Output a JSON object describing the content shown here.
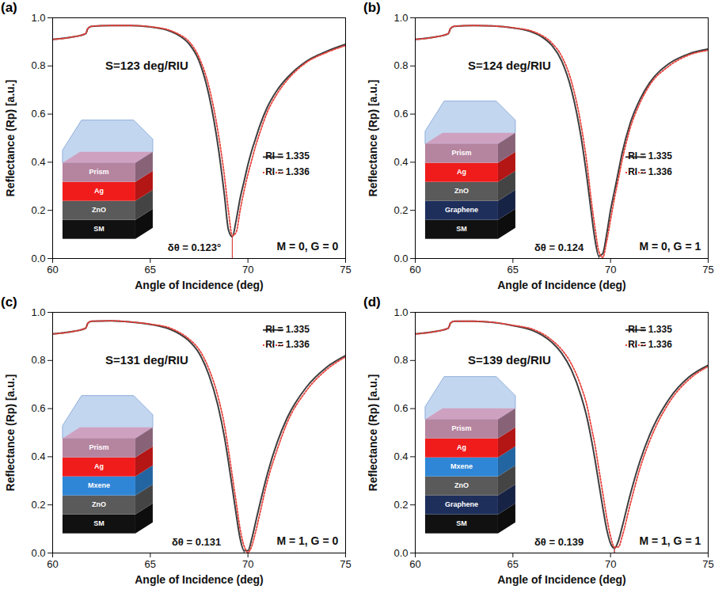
{
  "chart_data": [
    {
      "type": "line",
      "title": "(a)",
      "x_label": "Angle of Incidence (deg)",
      "y_label": "Reflectance (Rp) [a.u.]",
      "xlim": [
        60,
        75
      ],
      "xticks": [
        60,
        65,
        70,
        75
      ],
      "ylim": [
        0,
        1
      ],
      "yticks": [
        {
          "value": 0,
          "label": "0.0"
        },
        {
          "value": 0.2,
          "label": "0.2"
        },
        {
          "value": 0.4,
          "label": "0.4"
        },
        {
          "value": 0.6,
          "label": "0.6"
        },
        {
          "value": 0.8,
          "label": "0.8"
        },
        {
          "value": 1,
          "label": "1.0"
        }
      ],
      "legend": "right",
      "annotations": [
        "S=123 deg/RIU",
        "δθ = 0.123°",
        "M = 0, G = 0"
      ],
      "layers": [
        {
          "label": "Prism",
          "color": "#b5849f"
        },
        {
          "label": "Ag",
          "color": "#f01c1c"
        },
        {
          "label": "ZnO",
          "color": "#5a5a5a"
        },
        {
          "label": "SM",
          "color": "#111111"
        }
      ],
      "x": [
        60,
        61,
        61.7,
        61.8,
        62,
        63,
        64,
        65,
        66,
        66.5,
        67,
        67.5,
        68,
        68.5,
        68.8,
        69,
        69.2,
        69.4,
        69.6,
        69.8,
        70,
        70.2,
        70.4,
        70.6,
        71,
        71.5,
        72,
        73,
        74,
        75
      ],
      "series": [
        {
          "name": "RI = 1.335",
          "color": "#3d3d3d",
          "line_style": "solid",
          "values": [
            0.91,
            0.92,
            0.935,
            0.955,
            0.965,
            0.968,
            0.968,
            0.962,
            0.945,
            0.925,
            0.89,
            0.82,
            0.68,
            0.45,
            0.26,
            0.12,
            0.09,
            0.16,
            0.25,
            0.32,
            0.39,
            0.45,
            0.5,
            0.55,
            0.63,
            0.7,
            0.75,
            0.82,
            0.86,
            0.89
          ]
        },
        {
          "name": "RI = 1.336",
          "color": "#e8423c",
          "line_style": "dotted",
          "values": [
            0.91,
            0.92,
            0.935,
            0.955,
            0.965,
            0.968,
            0.968,
            0.963,
            0.948,
            0.93,
            0.9,
            0.835,
            0.715,
            0.51,
            0.34,
            0.2,
            0.095,
            0.11,
            0.2,
            0.28,
            0.35,
            0.41,
            0.47,
            0.52,
            0.61,
            0.685,
            0.74,
            0.815,
            0.855,
            0.885
          ]
        }
      ]
    },
    {
      "type": "line",
      "title": "(b)",
      "x_label": "Angle of Incidence (deg)",
      "y_label": "Reflectance (Rp) [a.u.]",
      "xlim": [
        60,
        75
      ],
      "xticks": [
        60,
        65,
        70,
        75
      ],
      "ylim": [
        0,
        1
      ],
      "yticks": [
        {
          "value": 0,
          "label": "0.0"
        },
        {
          "value": 0.2,
          "label": "0.2"
        },
        {
          "value": 0.4,
          "label": "0.4"
        },
        {
          "value": 0.6,
          "label": "0.6"
        },
        {
          "value": 0.8,
          "label": "0.8"
        },
        {
          "value": 1,
          "label": "1.0"
        }
      ],
      "legend": "right",
      "annotations": [
        "S=124 deg/RIU",
        "δθ = 0.124",
        "M = 0, G = 1"
      ],
      "layers": [
        {
          "label": "Prism",
          "color": "#b5849f"
        },
        {
          "label": "Ag",
          "color": "#f01c1c"
        },
        {
          "label": "ZnO",
          "color": "#5a5a5a"
        },
        {
          "label": "Graphene",
          "color": "#1e2f5c"
        },
        {
          "label": "SM",
          "color": "#111111"
        }
      ],
      "x": [
        60,
        61,
        61.7,
        61.8,
        62,
        63,
        64,
        65,
        66,
        66.5,
        67,
        67.5,
        68,
        68.5,
        68.8,
        69,
        69.2,
        69.4,
        69.6,
        69.8,
        70,
        70.2,
        70.4,
        70.6,
        71,
        71.5,
        72,
        73,
        74,
        75
      ],
      "series": [
        {
          "name": "RI = 1.335",
          "color": "#3d3d3d",
          "line_style": "solid",
          "values": [
            0.91,
            0.92,
            0.935,
            0.955,
            0.965,
            0.968,
            0.966,
            0.958,
            0.94,
            0.92,
            0.885,
            0.82,
            0.7,
            0.5,
            0.33,
            0.2,
            0.08,
            0.01,
            0.02,
            0.1,
            0.2,
            0.28,
            0.36,
            0.44,
            0.56,
            0.66,
            0.73,
            0.81,
            0.85,
            0.87
          ]
        },
        {
          "name": "RI = 1.336",
          "color": "#e8423c",
          "line_style": "dotted",
          "values": [
            0.91,
            0.92,
            0.935,
            0.955,
            0.965,
            0.968,
            0.966,
            0.959,
            0.944,
            0.926,
            0.895,
            0.84,
            0.735,
            0.55,
            0.39,
            0.25,
            0.13,
            0.03,
            0.005,
            0.07,
            0.16,
            0.25,
            0.33,
            0.41,
            0.54,
            0.645,
            0.72,
            0.8,
            0.845,
            0.865
          ]
        }
      ]
    },
    {
      "type": "line",
      "title": "(c)",
      "x_label": "Angle of Incidence (deg)",
      "y_label": "Reflectance (Rp) [a.u.]",
      "xlim": [
        60,
        75
      ],
      "xticks": [
        60,
        65,
        70,
        75
      ],
      "ylim": [
        0,
        1
      ],
      "yticks": [
        {
          "value": 0,
          "label": "0.0"
        },
        {
          "value": 0.2,
          "label": "0.2"
        },
        {
          "value": 0.4,
          "label": "0.4"
        },
        {
          "value": 0.6,
          "label": "0.6"
        },
        {
          "value": 0.8,
          "label": "0.8"
        },
        {
          "value": 1,
          "label": "1.0"
        }
      ],
      "legend": "top-right",
      "annotations": [
        "S=131 deg/RIU",
        "δθ = 0.131",
        "M = 1, G = 0"
      ],
      "layers": [
        {
          "label": "Prism",
          "color": "#b5849f"
        },
        {
          "label": "Ag",
          "color": "#f01c1c"
        },
        {
          "label": "Mxene",
          "color": "#2f86d6"
        },
        {
          "label": "ZnO",
          "color": "#5a5a5a"
        },
        {
          "label": "SM",
          "color": "#111111"
        }
      ],
      "x": [
        60,
        61,
        61.7,
        61.8,
        62,
        63,
        64,
        65,
        66,
        66.5,
        67,
        67.5,
        68,
        68.5,
        68.8,
        69,
        69.2,
        69.4,
        69.6,
        69.8,
        70,
        70.2,
        70.4,
        70.6,
        71,
        71.5,
        72,
        73,
        74,
        75
      ],
      "series": [
        {
          "name": "RI = 1.335",
          "color": "#3d3d3d",
          "line_style": "solid",
          "values": [
            0.91,
            0.92,
            0.935,
            0.955,
            0.963,
            0.965,
            0.96,
            0.95,
            0.93,
            0.91,
            0.88,
            0.83,
            0.74,
            0.6,
            0.48,
            0.38,
            0.27,
            0.16,
            0.06,
            0.01,
            0.01,
            0.06,
            0.13,
            0.2,
            0.33,
            0.46,
            0.56,
            0.69,
            0.77,
            0.82
          ]
        },
        {
          "name": "RI = 1.336",
          "color": "#e8423c",
          "line_style": "dotted",
          "values": [
            0.91,
            0.92,
            0.935,
            0.955,
            0.963,
            0.965,
            0.96,
            0.951,
            0.935,
            0.916,
            0.888,
            0.845,
            0.765,
            0.64,
            0.53,
            0.43,
            0.32,
            0.21,
            0.1,
            0.03,
            0.003,
            0.03,
            0.09,
            0.16,
            0.3,
            0.43,
            0.54,
            0.675,
            0.76,
            0.815
          ]
        }
      ]
    },
    {
      "type": "line",
      "title": "(d)",
      "x_label": "Angle of Incidence (deg)",
      "y_label": "Reflectance (Rp) [a.u.]",
      "xlim": [
        60,
        75
      ],
      "xticks": [
        60,
        65,
        70,
        75
      ],
      "ylim": [
        0,
        1
      ],
      "yticks": [
        {
          "value": 0,
          "label": "0.0"
        },
        {
          "value": 0.2,
          "label": "0.2"
        },
        {
          "value": 0.4,
          "label": "0.4"
        },
        {
          "value": 0.6,
          "label": "0.6"
        },
        {
          "value": 0.8,
          "label": "0.8"
        },
        {
          "value": 1,
          "label": "1.0"
        }
      ],
      "legend": "top-right",
      "annotations": [
        "S=139 deg/RIU",
        "δθ = 0.139",
        "M = 1, G = 1"
      ],
      "layers": [
        {
          "label": "Prism",
          "color": "#b5849f"
        },
        {
          "label": "Ag",
          "color": "#f01c1c"
        },
        {
          "label": "Mxene",
          "color": "#2f86d6"
        },
        {
          "label": "ZnO",
          "color": "#5a5a5a"
        },
        {
          "label": "Graphene",
          "color": "#1e2f5c"
        },
        {
          "label": "SM",
          "color": "#111111"
        }
      ],
      "x": [
        60,
        61,
        61.7,
        61.8,
        62,
        63,
        64,
        65,
        66,
        66.5,
        67,
        67.5,
        68,
        68.5,
        68.8,
        69,
        69.2,
        69.4,
        69.6,
        69.8,
        70,
        70.2,
        70.4,
        70.6,
        71,
        71.5,
        72,
        73,
        74,
        75
      ],
      "series": [
        {
          "name": "RI = 1.335",
          "color": "#3d3d3d",
          "line_style": "solid",
          "values": [
            0.91,
            0.92,
            0.935,
            0.955,
            0.963,
            0.963,
            0.958,
            0.945,
            0.925,
            0.905,
            0.875,
            0.83,
            0.76,
            0.65,
            0.56,
            0.48,
            0.39,
            0.29,
            0.19,
            0.1,
            0.04,
            0.02,
            0.05,
            0.11,
            0.24,
            0.38,
            0.49,
            0.64,
            0.73,
            0.78
          ]
        },
        {
          "name": "RI = 1.336",
          "color": "#e8423c",
          "line_style": "dotted",
          "values": [
            0.91,
            0.92,
            0.935,
            0.955,
            0.963,
            0.963,
            0.958,
            0.946,
            0.93,
            0.912,
            0.884,
            0.845,
            0.785,
            0.69,
            0.61,
            0.53,
            0.45,
            0.35,
            0.25,
            0.15,
            0.07,
            0.025,
            0.025,
            0.07,
            0.2,
            0.35,
            0.465,
            0.625,
            0.72,
            0.775
          ]
        }
      ]
    }
  ]
}
